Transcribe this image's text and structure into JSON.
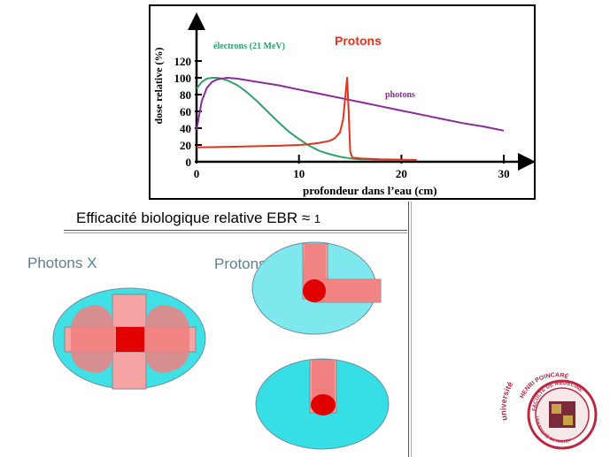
{
  "chart_data": {
    "type": "line",
    "xlabel": "profondeur dans l’eau (cm)",
    "ylabel": "dose relative (%)",
    "xlim": [
      0,
      32
    ],
    "ylim": [
      0,
      130
    ],
    "x_ticks": [
      0,
      10,
      20,
      30
    ],
    "y_ticks": [
      0,
      20,
      40,
      60,
      80,
      100,
      120
    ],
    "grid": false,
    "series": [
      {
        "name": "électrons (21 MeV)",
        "color": "#2ca26b",
        "x": [
          0,
          0.5,
          1,
          1.5,
          2,
          2.5,
          3,
          4,
          5,
          6,
          7,
          8,
          9,
          10,
          11,
          12,
          13,
          14,
          15,
          16,
          17,
          18,
          19,
          20,
          21
        ],
        "y": [
          87,
          95,
          99,
          100,
          100,
          99,
          97,
          91,
          82,
          71,
          59,
          47,
          36,
          27,
          19,
          13,
          9,
          6,
          4,
          3,
          3,
          2,
          2,
          2,
          2
        ]
      },
      {
        "name": "photons",
        "color": "#8b2a9c",
        "x": [
          0,
          0.5,
          1,
          1.5,
          2,
          3,
          4,
          5,
          6,
          8,
          10,
          12,
          14,
          16,
          18,
          20,
          22,
          24,
          26,
          28,
          30
        ],
        "y": [
          38,
          72,
          88,
          95,
          98,
          100,
          99,
          97,
          95,
          91,
          86,
          81,
          76,
          71,
          66,
          61,
          56,
          51,
          46,
          42,
          37
        ]
      },
      {
        "name": "Protons",
        "color": "#e0331e",
        "x": [
          0,
          2,
          4,
          6,
          8,
          10,
          11,
          12,
          13,
          13.5,
          14,
          14.3,
          14.5,
          14.7,
          14.85,
          15,
          15.2,
          16,
          18,
          20,
          21.5
        ],
        "y": [
          17,
          17.5,
          18,
          18.5,
          19,
          20,
          21,
          22.5,
          25,
          28,
          35,
          50,
          75,
          100,
          60,
          12,
          5,
          4,
          3,
          2.5,
          2
        ]
      }
    ]
  },
  "subtitle": {
    "text": "Efficacité biologique relative EBR ≈",
    "value": "1"
  },
  "panels": {
    "photons_label": "Photons X",
    "protons_label": "Protons"
  },
  "logo": {
    "top_text": "université",
    "name_text": "HENRI POINCARÉ",
    "outer_text": "FACULTÉ DE MÉDECINE",
    "inner_text": "UNIVERSITÉ DE NANCY"
  }
}
